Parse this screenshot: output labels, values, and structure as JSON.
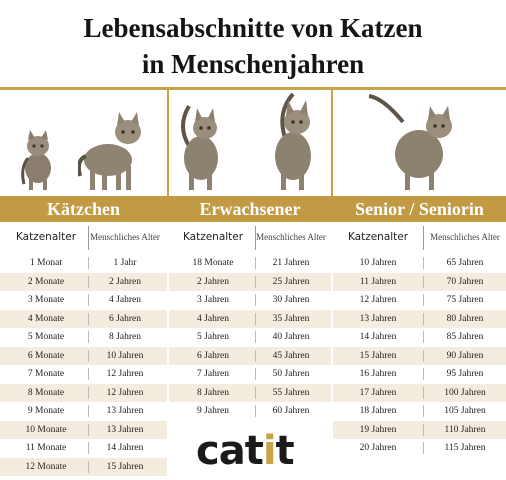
{
  "title": {
    "line1": "Lebensabschnitte von Katzen",
    "line2": "in Menschenjahren"
  },
  "colors": {
    "gold": "#c29a44",
    "shade": "#f4ecde"
  },
  "sections": [
    {
      "name": "Kätzchen",
      "col1_header": "Katzenalter",
      "col2_header": "Menschliches Alter",
      "rows": [
        [
          "1 Monat",
          "1 Jahr"
        ],
        [
          "2 Monate",
          "2 Jahren"
        ],
        [
          "3 Monate",
          "4 Jahren"
        ],
        [
          "4 Monate",
          "6 Jahren"
        ],
        [
          "5 Monate",
          "8 Jahren"
        ],
        [
          "6 Monate",
          "10 Jahren"
        ],
        [
          "7 Monate",
          "12 Jahren"
        ],
        [
          "8 Monate",
          "12 Jahren"
        ],
        [
          "9 Monate",
          "13 Jahren"
        ],
        [
          "10 Monate",
          "13 Jahren"
        ],
        [
          "11 Monate",
          "14 Jahren"
        ],
        [
          "12 Monate",
          "15 Jahren"
        ]
      ]
    },
    {
      "name": "Erwachsener",
      "col1_header": "Katzenalter",
      "col2_header": "Menschliches Alter",
      "rows": [
        [
          "18 Monate",
          "21 Jahren"
        ],
        [
          "2 Jahren",
          "25 Jahren"
        ],
        [
          "3 Jahren",
          "30 Jahren"
        ],
        [
          "4 Jahren",
          "35 Jahren"
        ],
        [
          "5 Jahren",
          "40 Jahren"
        ],
        [
          "6 Jahren",
          "45 Jahren"
        ],
        [
          "7 Jahren",
          "50 Jahren"
        ],
        [
          "8 Jahren",
          "55 Jahren"
        ],
        [
          "9 Jahren",
          "60 Jahren"
        ]
      ]
    },
    {
      "name": "Senior / Seniorin",
      "col1_header": "Katzenalter",
      "col2_header": "Menschliches Alter",
      "rows": [
        [
          "10 Jahren",
          "65 Jahren"
        ],
        [
          "11 Jahren",
          "70 Jahren"
        ],
        [
          "12 Jahren",
          "75 Jahren"
        ],
        [
          "13 Jahren",
          "80 Jahren"
        ],
        [
          "14 Jahren",
          "85 Jahren"
        ],
        [
          "15 Jahren",
          "90 Jahren"
        ],
        [
          "16 Jahren",
          "95 Jahren"
        ],
        [
          "17 Jahren",
          "100 Jahren"
        ],
        [
          "18 Jahren",
          "105 Jahren"
        ],
        [
          "19 Jahren",
          "110 Jahren"
        ],
        [
          "20 Jahren",
          "115 Jahren"
        ]
      ]
    }
  ],
  "logo": {
    "text_before": "cat",
    "text_dot": "i",
    "text_after": "t"
  }
}
